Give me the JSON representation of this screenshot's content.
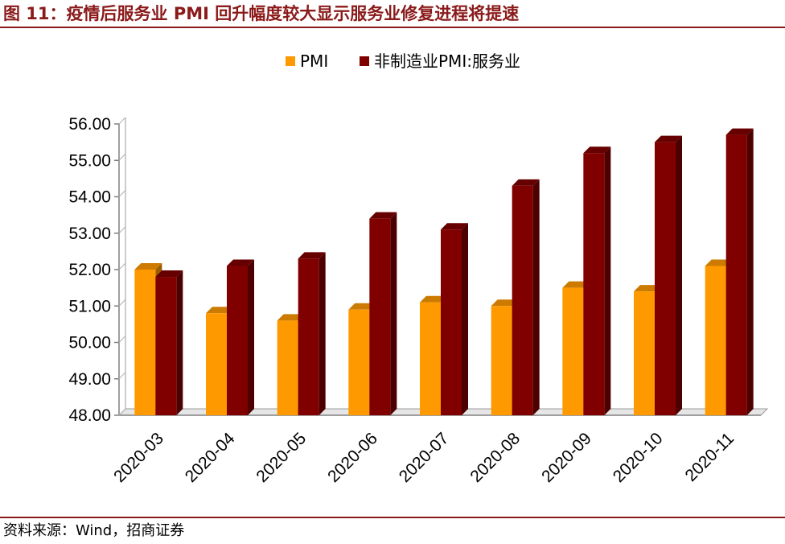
{
  "header": {
    "title": "图 11：疫情后服务业 PMI 回升幅度较大显示服务业修复进程将提速"
  },
  "footer": {
    "source": "资料来源：Wind，招商证券"
  },
  "colors": {
    "accent": "#8B1A1A",
    "pmi": "#FF9900",
    "services": "#800000"
  },
  "chart_data": {
    "type": "bar",
    "title": "",
    "xlabel": "",
    "ylabel": "",
    "categories": [
      "2020-03",
      "2020-04",
      "2020-05",
      "2020-06",
      "2020-07",
      "2020-08",
      "2020-09",
      "2020-10",
      "2020-11"
    ],
    "series": [
      {
        "name": "PMI",
        "values": [
          52.0,
          50.8,
          50.6,
          50.9,
          51.1,
          51.0,
          51.5,
          51.4,
          52.1
        ]
      },
      {
        "name": "非制造业PMI:服务业",
        "values": [
          51.8,
          52.1,
          52.3,
          53.4,
          53.1,
          54.3,
          55.2,
          55.5,
          55.7
        ]
      }
    ],
    "ylim": [
      48.0,
      56.0
    ],
    "yticks": [
      "48.00",
      "49.00",
      "50.00",
      "51.00",
      "52.00",
      "53.00",
      "54.00",
      "55.00",
      "56.00"
    ],
    "grid": false,
    "legend_position": "top-center",
    "style": "3d-bar"
  }
}
